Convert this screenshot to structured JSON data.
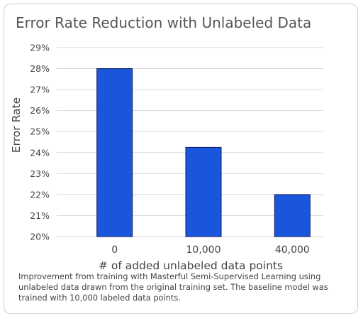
{
  "chart_data": {
    "type": "bar",
    "title": "Error Rate Reduction with Unlabeled Data",
    "xlabel": "# of added unlabeled data points",
    "ylabel": "Error Rate",
    "categories": [
      "0",
      "10,000",
      "40,000"
    ],
    "values": [
      28.0,
      24.25,
      22.0
    ],
    "ylim": [
      20,
      29
    ],
    "yticks": [
      "20%",
      "21%",
      "22%",
      "23%",
      "24%",
      "25%",
      "26%",
      "27%",
      "28%",
      "29%"
    ],
    "grid": true,
    "legend": "none",
    "bar_color": "#1a56db",
    "bar_border_color": "#0b1f66",
    "grid_color": "#d9d9d9",
    "caption": "Improvement from training with Masterful Semi-Supervised Learning using unlabeled data drawn from the original training set. The baseline model was trained with 10,000 labeled data points."
  }
}
